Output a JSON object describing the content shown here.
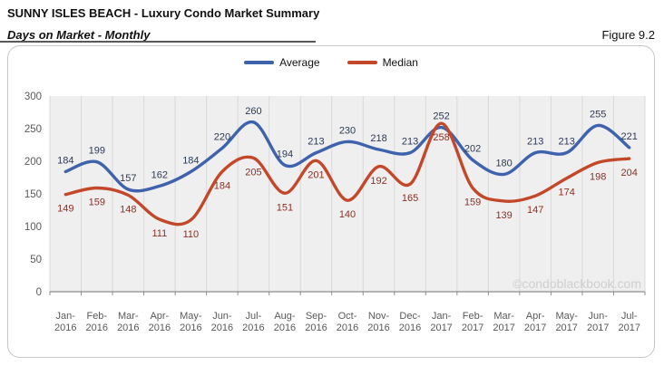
{
  "header": {
    "title": "SUNNY ISLES BEACH - Luxury Condo Market Summary",
    "subtitle": "Days on Market - Monthly",
    "figure_label": "Figure 9.2"
  },
  "legend": [
    {
      "label": "Average",
      "color": "#3f62ad"
    },
    {
      "label": "Median",
      "color": "#c3482a"
    }
  ],
  "watermark": "©condoblackbook.com",
  "chart_data": {
    "type": "line",
    "smooth": true,
    "title": "Days on Market - Monthly",
    "xlabel": "",
    "ylabel": "",
    "ylim": [
      0,
      300
    ],
    "yticks": [
      0,
      50,
      100,
      150,
      200,
      250,
      300
    ],
    "grid": "vertical-only",
    "legend_position": "top-center",
    "categories": [
      "Jan-2016",
      "Feb-2016",
      "Mar-2016",
      "Apr-2016",
      "May-2016",
      "Jun-2016",
      "Jul-2016",
      "Aug-2016",
      "Sep-2016",
      "Oct-2016",
      "Nov-2016",
      "Dec-2016",
      "Jan-2017",
      "Feb-2017",
      "Mar-2017",
      "Apr-2017",
      "May-2017",
      "Jun-2017",
      "Jul-2017"
    ],
    "series": [
      {
        "name": "Average",
        "color": "#3f62ad",
        "label_color": "#2d3a54",
        "values": [
          184,
          199,
          157,
          162,
          184,
          220,
          260,
          194,
          213,
          230,
          218,
          213,
          252,
          202,
          180,
          213,
          213,
          255,
          221
        ]
      },
      {
        "name": "Median",
        "color": "#c3482a",
        "label_color": "#8c2f23",
        "values": [
          149,
          159,
          148,
          111,
          110,
          184,
          205,
          151,
          201,
          140,
          192,
          165,
          258,
          159,
          139,
          147,
          174,
          198,
          204
        ]
      }
    ]
  },
  "colors": {
    "plot_bg": "#efefef",
    "gridline": "#d9d9d9",
    "axis_line": "#8c8c8c",
    "tick_label": "#595959",
    "card_border": "#c6c6c6",
    "watermark": "#d0cfcd"
  }
}
